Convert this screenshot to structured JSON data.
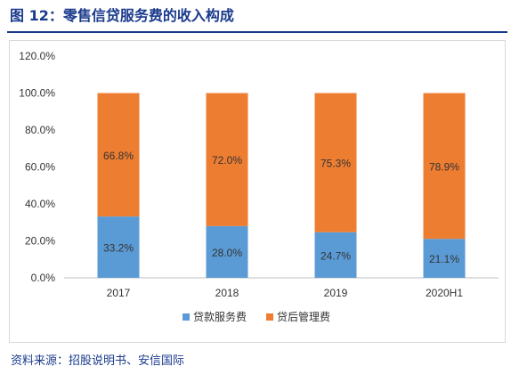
{
  "header": {
    "title": "图 12：零售信贷服务费的收入构成"
  },
  "footer": {
    "source": "资料来源：招股说明书、安信国际"
  },
  "chart_data": {
    "type": "bar",
    "stacked": true,
    "categories": [
      "2017",
      "2018",
      "2019",
      "2020H1"
    ],
    "series": [
      {
        "name": "贷款服务费",
        "values": [
          33.2,
          28.0,
          24.7,
          21.1
        ],
        "labels": [
          "33.2%",
          "28.0%",
          "24.7%",
          "21.1%"
        ],
        "color": "#5b9bd5"
      },
      {
        "name": "贷后管理费",
        "values": [
          66.8,
          72.0,
          75.3,
          78.9
        ],
        "labels": [
          "66.8%",
          "72.0%",
          "75.3%",
          "78.9%"
        ],
        "color": "#ed7d31"
      }
    ],
    "yticks": [
      "0.0%",
      "20.0%",
      "40.0%",
      "60.0%",
      "80.0%",
      "100.0%",
      "120.0%"
    ],
    "ylim": [
      0,
      120
    ],
    "grid": false,
    "legend": "bottom"
  }
}
